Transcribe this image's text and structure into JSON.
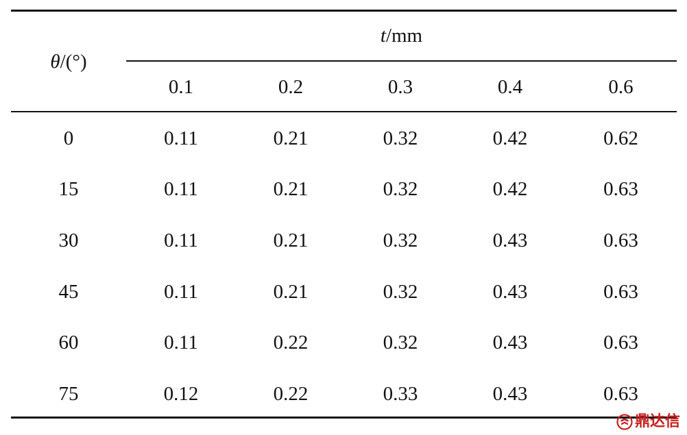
{
  "table": {
    "row_header": {
      "symbol": "θ",
      "unit": "/(°)"
    },
    "column_group": {
      "symbol": "t",
      "unit": "/mm"
    },
    "columns": [
      "0.1",
      "0.2",
      "0.3",
      "0.4",
      "0.6"
    ],
    "rows": [
      {
        "theta": "0",
        "values": [
          "0.11",
          "0.21",
          "0.32",
          "0.42",
          "0.62"
        ]
      },
      {
        "theta": "15",
        "values": [
          "0.11",
          "0.21",
          "0.32",
          "0.42",
          "0.63"
        ]
      },
      {
        "theta": "30",
        "values": [
          "0.11",
          "0.21",
          "0.32",
          "0.43",
          "0.63"
        ]
      },
      {
        "theta": "45",
        "values": [
          "0.11",
          "0.21",
          "0.32",
          "0.43",
          "0.63"
        ]
      },
      {
        "theta": "60",
        "values": [
          "0.11",
          "0.22",
          "0.32",
          "0.43",
          "0.63"
        ]
      },
      {
        "theta": "75",
        "values": [
          "0.12",
          "0.22",
          "0.33",
          "0.43",
          "0.63"
        ]
      }
    ]
  },
  "watermark": {
    "text": "鼎达信",
    "color": "#c8201e",
    "icon": "brand-logo-icon"
  }
}
